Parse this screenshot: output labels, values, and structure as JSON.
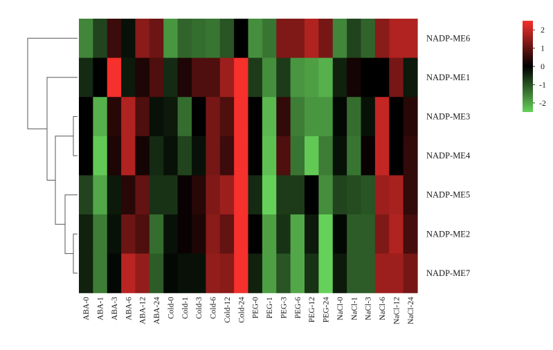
{
  "chart_data": {
    "type": "heatmap",
    "columns": [
      "ABA-0",
      "ABA-1",
      "ABA-3",
      "ABA-6",
      "ABA-12",
      "ABA-24",
      "Cold-0",
      "Cold-1",
      "Cold-3",
      "Cold-6",
      "Cold-12",
      "Cold-24",
      "PEG-0",
      "PEG-1",
      "PEG-3",
      "PEG-6",
      "PEG-12",
      "PEG-24",
      "NaCl-0",
      "NaCl-1",
      "NaCl-3",
      "NaCl-6",
      "NaCl-12",
      "NaCl-24"
    ],
    "rows": [
      "NADP-ME6",
      "NADP-ME1",
      "NADP-ME3",
      "NADP-ME4",
      "NADP-ME5",
      "NADP-ME2",
      "NADP-ME7"
    ],
    "values": [
      [
        -1.6,
        -0.8,
        0.6,
        -0.2,
        1.4,
        1.1,
        -1.8,
        -1.2,
        -1.3,
        -1.4,
        -1.0,
        0.0,
        -1.7,
        -1.4,
        1.3,
        1.3,
        1.8,
        1.2,
        -1.6,
        -0.8,
        -1.2,
        1.4,
        1.8,
        1.8
      ],
      [
        -0.5,
        0.0,
        2.5,
        -0.3,
        0.3,
        0.8,
        -0.5,
        0.3,
        0.8,
        0.8,
        1.6,
        2.5,
        -0.7,
        -1.7,
        -0.7,
        -1.8,
        -1.9,
        -2.1,
        -0.4,
        0.2,
        0.0,
        0.0,
        1.2,
        -0.3
      ],
      [
        0.0,
        -2.1,
        0.4,
        1.8,
        0.8,
        -0.2,
        -0.3,
        -1.3,
        0.0,
        1.2,
        0.8,
        2.5,
        0.0,
        -2.2,
        0.5,
        -1.5,
        -1.8,
        -1.8,
        -0.1,
        -1.3,
        -0.2,
        2.0,
        0.0,
        0.4
      ],
      [
        0.0,
        -2.4,
        0.3,
        1.8,
        0.2,
        -0.5,
        -0.2,
        -0.8,
        -0.2,
        1.2,
        0.6,
        2.5,
        0.0,
        -2.3,
        0.8,
        -1.4,
        -2.4,
        -1.5,
        -0.2,
        -1.4,
        0.1,
        2.0,
        0.0,
        0.5
      ],
      [
        -0.8,
        -2.0,
        -0.3,
        0.4,
        1.0,
        -0.6,
        -0.6,
        0.1,
        0.4,
        1.3,
        1.6,
        2.5,
        -0.5,
        -2.6,
        -0.7,
        -0.7,
        0.0,
        -1.7,
        -0.8,
        -0.9,
        -1.0,
        1.6,
        1.7,
        0.5
      ],
      [
        -0.4,
        -1.5,
        -0.2,
        1.1,
        0.8,
        -1.3,
        -0.2,
        0.1,
        0.3,
        1.4,
        1.0,
        2.5,
        0.0,
        -1.9,
        -0.6,
        -2.0,
        -0.3,
        -2.6,
        -0.1,
        -1.1,
        -1.1,
        1.3,
        1.8,
        0.7
      ],
      [
        -0.4,
        -1.5,
        -0.1,
        1.9,
        1.5,
        -1.1,
        -0.1,
        -0.2,
        -0.2,
        1.5,
        1.4,
        2.5,
        -0.4,
        -1.9,
        -1.0,
        -2.0,
        -0.6,
        -2.6,
        -0.3,
        -1.1,
        -1.1,
        1.6,
        1.6,
        1.2
      ]
    ],
    "color_scale": {
      "min": -2.5,
      "max": 2.5,
      "low": "#66d15a",
      "mid": "#000000",
      "high": "#f5302d"
    },
    "legend_ticks": [
      "2",
      "1",
      "0",
      "-1",
      "-2"
    ],
    "legend_tick_values": [
      2,
      1,
      0,
      -1,
      -2
    ],
    "dendrogram": {
      "leaf_order": [
        "NADP-ME6",
        "NADP-ME1",
        "NADP-ME3",
        "NADP-ME4",
        "NADP-ME5",
        "NADP-ME2",
        "NADP-ME7"
      ],
      "merges": [
        [
          [
            "NADP-ME2"
          ],
          [
            "NADP-ME7"
          ]
        ],
        [
          [
            "NADP-ME3"
          ],
          [
            "NADP-ME4"
          ]
        ],
        [
          [
            "NADP-ME5"
          ],
          [
            "NADP-ME2",
            "NADP-ME7"
          ]
        ],
        [
          [
            "NADP-ME3",
            "NADP-ME4"
          ],
          [
            "NADP-ME5",
            "NADP-ME2",
            "NADP-ME7"
          ]
        ],
        [
          [
            "NADP-ME1"
          ],
          [
            "NADP-ME3",
            "NADP-ME4",
            "NADP-ME5",
            "NADP-ME2",
            "NADP-ME7"
          ]
        ],
        [
          [
            "NADP-ME6"
          ],
          [
            "NADP-ME1",
            "NADP-ME3",
            "NADP-ME4",
            "NADP-ME5",
            "NADP-ME2",
            "NADP-ME7"
          ]
        ]
      ]
    }
  }
}
